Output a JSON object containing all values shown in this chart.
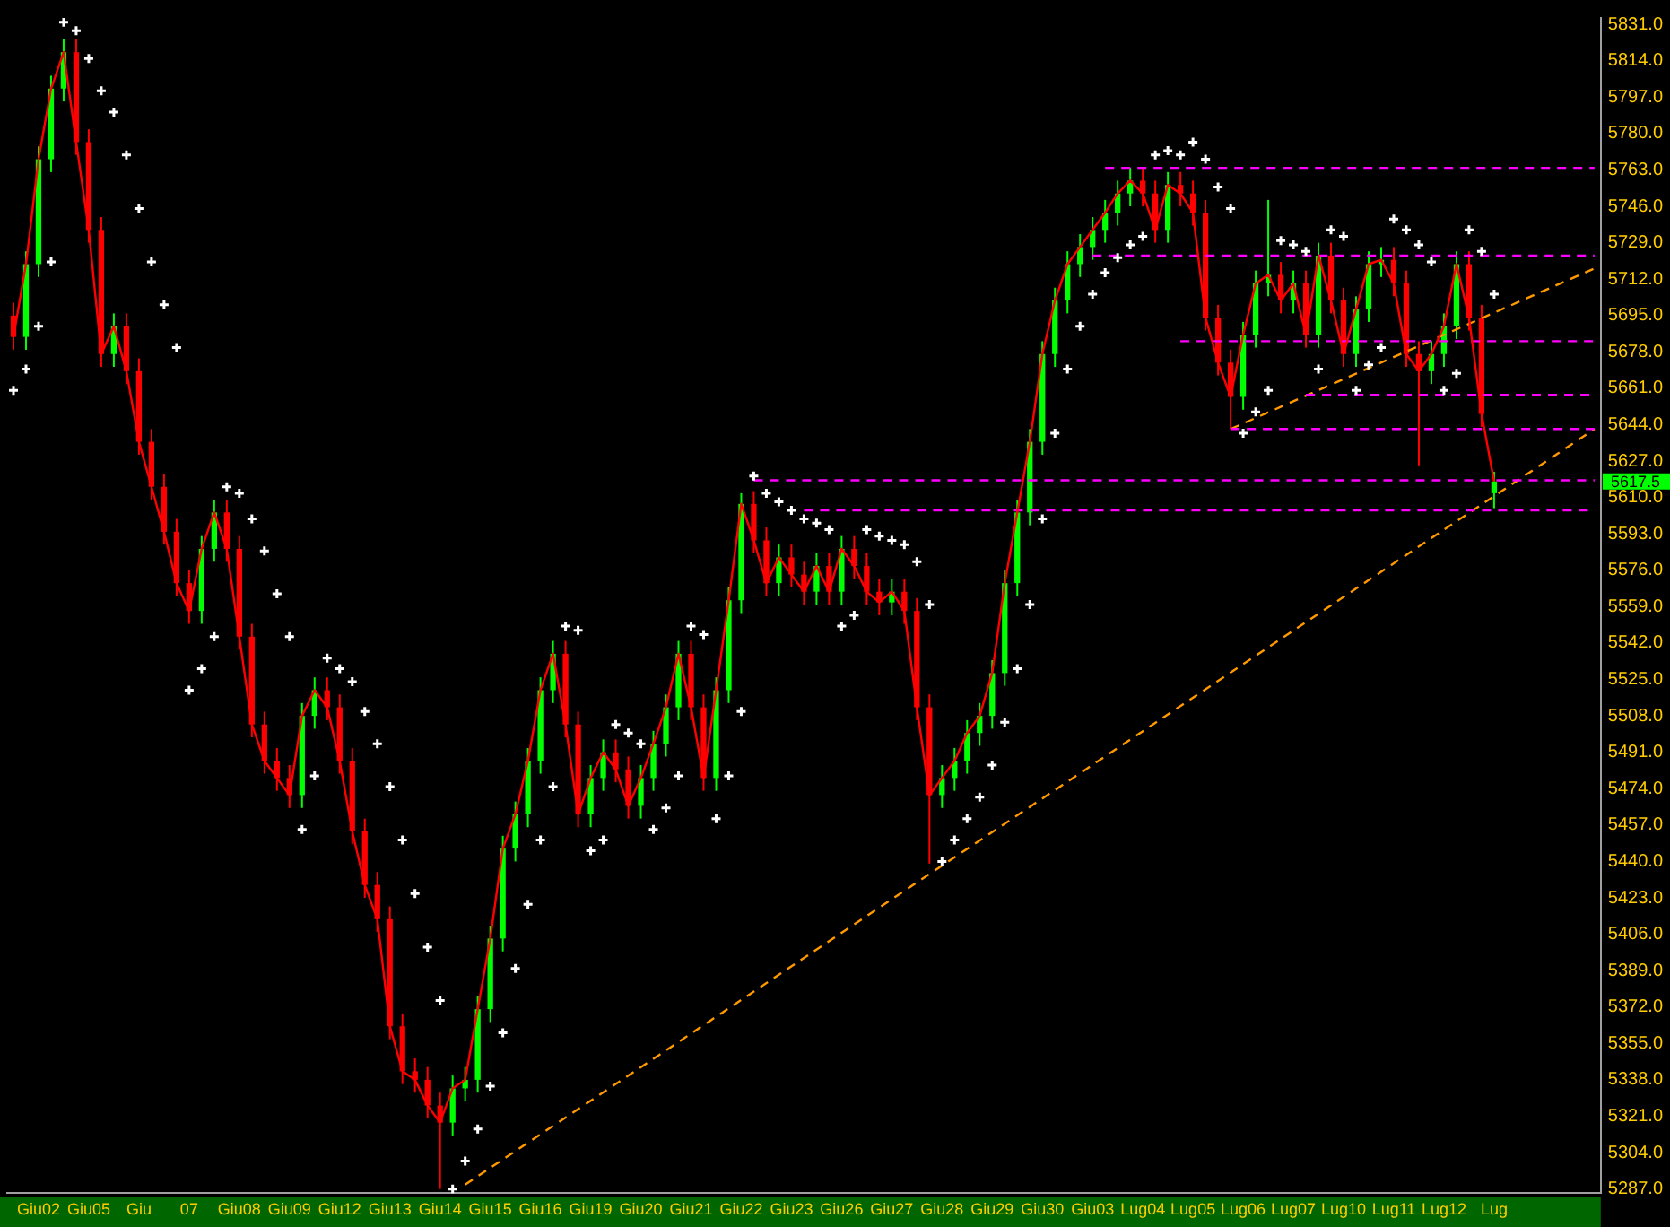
{
  "chart_data": {
    "type": "candlestick",
    "categories": [
      null,
      null,
      "Giu02",
      null,
      null,
      null,
      "Giu05",
      null,
      null,
      null,
      "Giu",
      null,
      null,
      null,
      "07",
      null,
      null,
      null,
      "Giu08",
      null,
      null,
      null,
      "Giu09",
      null,
      null,
      null,
      "Giu12",
      null,
      null,
      null,
      "Giu13",
      null,
      null,
      null,
      "Giu14",
      null,
      null,
      null,
      "Giu15",
      null,
      null,
      null,
      "Giu16",
      null,
      null,
      null,
      "Giu19",
      null,
      null,
      null,
      "Giu20",
      null,
      null,
      null,
      "Giu21",
      null,
      null,
      null,
      "Giu22",
      null,
      null,
      null,
      "Giu23",
      null,
      null,
      null,
      "Giu26",
      null,
      null,
      null,
      "Giu27",
      null,
      null,
      null,
      "Giu28",
      null,
      null,
      null,
      "Giu29",
      null,
      null,
      null,
      "Giu30",
      null,
      null,
      null,
      "Giu03",
      null,
      null,
      null,
      "Lug04",
      null,
      null,
      null,
      "Lug05",
      null,
      null,
      null,
      "Lug06",
      null,
      null,
      null,
      "Lug07",
      null,
      null,
      null,
      "Lug10",
      null,
      null,
      null,
      "Lug11",
      null,
      null,
      null,
      "Lug12",
      null,
      null,
      null,
      "Lug",
      null,
      null,
      null,
      null,
      null,
      null,
      null,
      null
    ],
    "ohlc": [
      [
        5695,
        5701,
        5679,
        5685
      ],
      [
        5685,
        5725,
        5679,
        5719
      ],
      [
        5719,
        5774,
        5713,
        5768
      ],
      [
        5768,
        5807,
        5762,
        5801
      ],
      [
        5801,
        5824,
        5795,
        5818
      ],
      [
        5818,
        5824,
        5770,
        5776
      ],
      [
        5776,
        5782,
        5729,
        5735
      ],
      [
        5735,
        5741,
        5671,
        5677
      ],
      [
        5677,
        5696,
        5671,
        5690
      ],
      [
        5690,
        5696,
        5663,
        5669
      ],
      [
        5669,
        5675,
        5630,
        5636
      ],
      [
        5636,
        5642,
        5609,
        5615
      ],
      [
        5615,
        5621,
        5588,
        5594
      ],
      [
        5594,
        5600,
        5564,
        5570
      ],
      [
        5570,
        5576,
        5551,
        5557
      ],
      [
        5557,
        5592,
        5551,
        5586
      ],
      [
        5586,
        5609,
        5580,
        5603
      ],
      [
        5603,
        5609,
        5580,
        5586
      ],
      [
        5586,
        5592,
        5539,
        5545
      ],
      [
        5545,
        5551,
        5498,
        5504
      ],
      [
        5504,
        5510,
        5481,
        5487
      ],
      [
        5487,
        5493,
        5473,
        5479
      ],
      [
        5479,
        5485,
        5465,
        5471
      ],
      [
        5471,
        5514,
        5465,
        5508
      ],
      [
        5508,
        5526,
        5502,
        5520
      ],
      [
        5520,
        5526,
        5506,
        5512
      ],
      [
        5512,
        5518,
        5481,
        5487
      ],
      [
        5487,
        5493,
        5448,
        5454
      ],
      [
        5454,
        5460,
        5423,
        5429
      ],
      [
        5429,
        5435,
        5407,
        5413
      ],
      [
        5413,
        5419,
        5357,
        5363
      ],
      [
        5363,
        5369,
        5336,
        5342
      ],
      [
        5342,
        5348,
        5332,
        5338
      ],
      [
        5338,
        5344,
        5320,
        5326
      ],
      [
        5326,
        5332,
        5287,
        5318
      ],
      [
        5318,
        5340,
        5312,
        5334
      ],
      [
        5334,
        5344,
        5328,
        5338
      ],
      [
        5338,
        5377,
        5332,
        5371
      ],
      [
        5371,
        5410,
        5365,
        5404
      ],
      [
        5404,
        5452,
        5398,
        5446
      ],
      [
        5446,
        5468,
        5440,
        5462
      ],
      [
        5462,
        5493,
        5456,
        5487
      ],
      [
        5487,
        5526,
        5481,
        5520
      ],
      [
        5520,
        5543,
        5514,
        5537
      ],
      [
        5537,
        5543,
        5498,
        5504
      ],
      [
        5504,
        5510,
        5456,
        5462
      ],
      [
        5462,
        5485,
        5456,
        5479
      ],
      [
        5479,
        5497,
        5473,
        5491
      ],
      [
        5491,
        5497,
        5477,
        5483
      ],
      [
        5483,
        5489,
        5460,
        5466
      ],
      [
        5466,
        5485,
        5460,
        5479
      ],
      [
        5479,
        5501,
        5473,
        5495
      ],
      [
        5495,
        5518,
        5489,
        5512
      ],
      [
        5512,
        5543,
        5506,
        5537
      ],
      [
        5537,
        5543,
        5506,
        5512
      ],
      [
        5512,
        5518,
        5473,
        5479
      ],
      [
        5479,
        5526,
        5473,
        5520
      ],
      [
        5520,
        5568,
        5514,
        5562
      ],
      [
        5562,
        5612,
        5556,
        5607
      ],
      [
        5607,
        5613,
        5584,
        5590
      ],
      [
        5590,
        5596,
        5564,
        5570
      ],
      [
        5570,
        5588,
        5564,
        5582
      ],
      [
        5582,
        5588,
        5568,
        5574
      ],
      [
        5574,
        5580,
        5560,
        5566
      ],
      [
        5566,
        5584,
        5560,
        5578
      ],
      [
        5578,
        5584,
        5560,
        5566
      ],
      [
        5566,
        5592,
        5560,
        5586
      ],
      [
        5586,
        5592,
        5572,
        5578
      ],
      [
        5578,
        5584,
        5560,
        5566
      ],
      [
        5566,
        5572,
        5555,
        5561
      ],
      [
        5561,
        5572,
        5555,
        5566
      ],
      [
        5566,
        5572,
        5551,
        5557
      ],
      [
        5557,
        5563,
        5506,
        5512
      ],
      [
        5512,
        5518,
        5439,
        5471
      ],
      [
        5471,
        5485,
        5465,
        5479
      ],
      [
        5479,
        5493,
        5473,
        5487
      ],
      [
        5487,
        5506,
        5481,
        5500
      ],
      [
        5500,
        5514,
        5494,
        5508
      ],
      [
        5508,
        5534,
        5502,
        5528
      ],
      [
        5528,
        5576,
        5522,
        5570
      ],
      [
        5570,
        5609,
        5564,
        5603
      ],
      [
        5603,
        5642,
        5597,
        5636
      ],
      [
        5636,
        5683,
        5630,
        5677
      ],
      [
        5677,
        5708,
        5671,
        5702
      ],
      [
        5702,
        5725,
        5696,
        5719
      ],
      [
        5719,
        5733,
        5713,
        5727
      ],
      [
        5727,
        5741,
        5721,
        5735
      ],
      [
        5735,
        5749,
        5729,
        5743
      ],
      [
        5743,
        5758,
        5737,
        5752
      ],
      [
        5752,
        5764,
        5746,
        5758
      ],
      [
        5758,
        5764,
        5746,
        5752
      ],
      [
        5752,
        5758,
        5729,
        5735
      ],
      [
        5735,
        5762,
        5729,
        5756
      ],
      [
        5756,
        5762,
        5746,
        5752
      ],
      [
        5752,
        5758,
        5737,
        5743
      ],
      [
        5743,
        5749,
        5688,
        5694
      ],
      [
        5694,
        5700,
        5667,
        5673
      ],
      [
        5673,
        5679,
        5642,
        5657
      ],
      [
        5657,
        5692,
        5651,
        5686
      ],
      [
        5686,
        5716,
        5680,
        5710
      ],
      [
        5710,
        5749,
        5704,
        5714
      ],
      [
        5714,
        5720,
        5696,
        5702
      ],
      [
        5702,
        5716,
        5696,
        5710
      ],
      [
        5710,
        5716,
        5680,
        5686
      ],
      [
        5686,
        5729,
        5680,
        5723
      ],
      [
        5723,
        5729,
        5696,
        5702
      ],
      [
        5702,
        5708,
        5671,
        5677
      ],
      [
        5677,
        5704,
        5671,
        5698
      ],
      [
        5698,
        5725,
        5692,
        5719
      ],
      [
        5719,
        5727,
        5713,
        5721
      ],
      [
        5721,
        5727,
        5704,
        5710
      ],
      [
        5710,
        5716,
        5671,
        5677
      ],
      [
        5677,
        5683,
        5625,
        5669
      ],
      [
        5669,
        5683,
        5663,
        5677
      ],
      [
        5677,
        5696,
        5671,
        5690
      ],
      [
        5690,
        5725,
        5684,
        5719
      ],
      [
        5719,
        5725,
        5688,
        5694
      ],
      [
        5694,
        5700,
        5643,
        5649
      ],
      [
        5612,
        5622,
        5605,
        5617.5
      ],
      null,
      null,
      null,
      null,
      null,
      null,
      null,
      null
    ],
    "colors": [
      "#ff0000",
      "#00ff00",
      "#00ff00",
      "#00ff00",
      "#00ff00",
      "#ff0000",
      "#ff0000",
      "#ff0000",
      "#00ff00",
      "#ff0000",
      "#ff0000",
      "#ff0000",
      "#ff0000",
      "#ff0000",
      "#ff0000",
      "#00ff00",
      "#00ff00",
      "#ff0000",
      "#ff0000",
      "#ff0000",
      "#ff0000",
      "#ff0000",
      "#ff0000",
      "#00ff00",
      "#00ff00",
      "#ff0000",
      "#ff0000",
      "#ff0000",
      "#ff0000",
      "#ff0000",
      "#ff0000",
      "#ff0000",
      "#ff0000",
      "#ff0000",
      "#ff0000",
      "#00ff00",
      "#00ff00",
      "#00ff00",
      "#00ff00",
      "#00ff00",
      "#00ff00",
      "#00ff00",
      "#00ff00",
      "#00ff00",
      "#ff0000",
      "#ff0000",
      "#00ff00",
      "#00ff00",
      "#ff0000",
      "#ff0000",
      "#00ff00",
      "#00ff00",
      "#00ff00",
      "#00ff00",
      "#ff0000",
      "#ff0000",
      "#00ff00",
      "#00ff00",
      "#00ff00",
      "#ff0000",
      "#ff0000",
      "#00ff00",
      "#ff0000",
      "#ff0000",
      "#00ff00",
      "#ff0000",
      "#00ff00",
      "#ff0000",
      "#ff0000",
      "#ff0000",
      "#00ff00",
      "#ff0000",
      "#ff0000",
      "#ff0000",
      "#00ff00",
      "#00ff00",
      "#00ff00",
      "#00ff00",
      "#00ff00",
      "#00ff00",
      "#00ff00",
      "#00ff00",
      "#00ff00",
      "#00ff00",
      "#00ff00",
      "#00ff00",
      "#00ff00",
      "#00ff00",
      "#00ff00",
      "#00ff00",
      "#ff0000",
      "#ff0000",
      "#00ff00",
      "#ff0000",
      "#ff0000",
      "#ff0000",
      "#ff0000",
      "#ff0000",
      "#00ff00",
      "#00ff00",
      "#00ff00",
      "#ff0000",
      "#00ff00",
      "#ff0000",
      "#00ff00",
      "#ff0000",
      "#ff0000",
      "#00ff00",
      "#00ff00",
      "#00ff00",
      "#ff0000",
      "#ff0000",
      "#ff0000",
      "#00ff00",
      "#00ff00",
      "#00ff00",
      "#ff0000",
      "#ff0000",
      "#00ff00",
      null,
      null,
      null,
      null,
      null,
      null,
      null,
      null
    ],
    "series": [
      {
        "type": "line",
        "color": "#ff0000",
        "line_style": "solid",
        "values": [
          5685,
          5719,
          5768,
          5801,
          5818,
          5776,
          5735,
          5677,
          5690,
          5669,
          5636,
          5615,
          5594,
          5570,
          5557,
          5586,
          5603,
          5586,
          5545,
          5504,
          5487,
          5479,
          5471,
          5508,
          5520,
          5512,
          5487,
          5454,
          5429,
          5413,
          5363,
          5342,
          5338,
          5326,
          5318,
          5334,
          5338,
          5371,
          5404,
          5446,
          5462,
          5487,
          5520,
          5537,
          5504,
          5462,
          5479,
          5491,
          5483,
          5466,
          5479,
          5495,
          5512,
          5537,
          5512,
          5479,
          5520,
          5562,
          5607,
          5590,
          5570,
          5582,
          5574,
          5566,
          5578,
          5566,
          5586,
          5578,
          5566,
          5561,
          5566,
          5557,
          5512,
          5471,
          5479,
          5487,
          5500,
          5508,
          5528,
          5570,
          5603,
          5636,
          5677,
          5702,
          5719,
          5727,
          5735,
          5743,
          5752,
          5758,
          5752,
          5735,
          5756,
          5752,
          5743,
          5694,
          5673,
          5657,
          5686,
          5710,
          5714,
          5702,
          5710,
          5686,
          5723,
          5702,
          5677,
          5698,
          5719,
          5721,
          5710,
          5677,
          5669,
          5677,
          5690,
          5719,
          5694,
          5649,
          5617.5,
          null,
          null,
          null,
          null,
          null,
          null,
          null,
          null
        ]
      },
      {
        "type": "scatter",
        "color": "#ffffff",
        "marker": "cross",
        "values": [
          5660,
          5670,
          5690,
          5720,
          5832,
          5828,
          5815,
          5800,
          5790,
          5770,
          5745,
          5720,
          5700,
          5680,
          5520,
          5530,
          5545,
          5615,
          5612,
          5600,
          5585,
          5565,
          5545,
          5455,
          5480,
          5535,
          5530,
          5524,
          5510,
          5495,
          5475,
          5450,
          5425,
          5400,
          5375,
          5287,
          5300,
          5315,
          5335,
          5360,
          5390,
          5420,
          5450,
          5475,
          5550,
          5548,
          5445,
          5450,
          5504,
          5500,
          5495,
          5455,
          5465,
          5480,
          5550,
          5546,
          5460,
          5480,
          5510,
          5620,
          5612,
          5608,
          5604,
          5600,
          5598,
          5595,
          5550,
          5555,
          5595,
          5592,
          5590,
          5588,
          5580,
          5560,
          5440,
          5450,
          5460,
          5470,
          5485,
          5505,
          5530,
          5560,
          5600,
          5640,
          5670,
          5690,
          5705,
          5715,
          5722,
          5728,
          5732,
          5770,
          5772,
          5770,
          5776,
          5768,
          5755,
          5745,
          5640,
          5650,
          5660,
          5730,
          5728,
          5725,
          5670,
          5735,
          5732,
          5660,
          5672,
          5680,
          5740,
          5735,
          5728,
          5720,
          5660,
          5668,
          5735,
          5725,
          5705,
          null,
          null,
          null,
          null,
          null,
          null,
          null,
          null
        ]
      },
      {
        "type": "line",
        "color": "#ff00ff",
        "line_style": "dashed",
        "values": [
          null,
          null,
          null,
          null,
          null,
          null,
          null,
          null,
          null,
          null,
          null,
          null,
          null,
          null,
          null,
          null,
          null,
          null,
          null,
          null,
          null,
          null,
          null,
          null,
          null,
          null,
          null,
          null,
          null,
          null,
          null,
          null,
          null,
          null,
          null,
          null,
          null,
          null,
          null,
          null,
          null,
          null,
          null,
          null,
          null,
          null,
          null,
          null,
          null,
          null,
          null,
          null,
          null,
          null,
          null,
          null,
          null,
          null,
          null,
          null,
          null,
          null,
          null,
          null,
          null,
          null,
          null,
          null,
          null,
          null,
          null,
          null,
          null,
          null,
          null,
          null,
          null,
          null,
          null,
          null,
          null,
          null,
          null,
          null,
          null,
          null,
          null,
          5764,
          5764,
          5764,
          5764,
          5764,
          5764,
          5764,
          5764,
          5764,
          5764,
          5764,
          5764,
          5764,
          5764,
          5764,
          5764,
          5764,
          5764,
          5764,
          5764,
          5764,
          5764,
          5764,
          5764,
          5764,
          5764,
          5764,
          5764,
          5764,
          5764,
          5764,
          5764,
          5764,
          5764,
          5764,
          5764,
          5764,
          5764,
          5764,
          5764
        ]
      },
      {
        "type": "line",
        "color": "#ff00ff",
        "line_style": "dashed",
        "values": [
          null,
          null,
          null,
          null,
          null,
          null,
          null,
          null,
          null,
          null,
          null,
          null,
          null,
          null,
          null,
          null,
          null,
          null,
          null,
          null,
          null,
          null,
          null,
          null,
          null,
          null,
          null,
          null,
          null,
          null,
          null,
          null,
          null,
          null,
          null,
          null,
          null,
          null,
          null,
          null,
          null,
          null,
          null,
          null,
          null,
          null,
          null,
          null,
          null,
          null,
          null,
          null,
          null,
          null,
          null,
          null,
          null,
          null,
          null,
          null,
          null,
          null,
          null,
          null,
          null,
          null,
          null,
          null,
          null,
          null,
          null,
          null,
          null,
          null,
          null,
          null,
          null,
          null,
          null,
          null,
          null,
          null,
          null,
          null,
          null,
          null,
          5723,
          5723,
          5723,
          5723,
          5723,
          5723,
          5723,
          5723,
          5723,
          5723,
          5723,
          5723,
          5723,
          5723,
          5723,
          5723,
          5723,
          5723,
          5723,
          5723,
          5723,
          5723,
          5723,
          5723,
          5723,
          5723,
          5723,
          5723,
          5723,
          5723,
          5723,
          5723,
          5723,
          5723,
          5723,
          5723,
          5723,
          5723,
          5723,
          5723,
          5723
        ]
      },
      {
        "type": "line",
        "color": "#ff00ff",
        "line_style": "dashed",
        "values": [
          null,
          null,
          null,
          null,
          null,
          null,
          null,
          null,
          null,
          null,
          null,
          null,
          null,
          null,
          null,
          null,
          null,
          null,
          null,
          null,
          null,
          null,
          null,
          null,
          null,
          null,
          null,
          null,
          null,
          null,
          null,
          null,
          null,
          null,
          null,
          null,
          null,
          null,
          null,
          null,
          null,
          null,
          null,
          null,
          null,
          null,
          null,
          null,
          null,
          null,
          null,
          null,
          null,
          null,
          null,
          null,
          null,
          null,
          null,
          null,
          null,
          null,
          null,
          null,
          null,
          null,
          null,
          null,
          null,
          null,
          null,
          null,
          null,
          null,
          null,
          null,
          null,
          null,
          null,
          null,
          null,
          null,
          null,
          null,
          null,
          null,
          null,
          null,
          null,
          null,
          null,
          null,
          null,
          5683,
          5683,
          5683,
          5683,
          5683,
          5683,
          5683,
          5683,
          5683,
          5683,
          5683,
          5683,
          5683,
          5683,
          5683,
          5683,
          5683,
          5683,
          5683,
          5683,
          5683,
          5683,
          5683,
          5683,
          5683,
          5683,
          5683,
          5683,
          5683,
          5683,
          5683,
          5683,
          5683,
          5683
        ]
      },
      {
        "type": "line",
        "color": "#ff00ff",
        "line_style": "dashed",
        "values": [
          null,
          null,
          null,
          null,
          null,
          null,
          null,
          null,
          null,
          null,
          null,
          null,
          null,
          null,
          null,
          null,
          null,
          null,
          null,
          null,
          null,
          null,
          null,
          null,
          null,
          null,
          null,
          null,
          null,
          null,
          null,
          null,
          null,
          null,
          null,
          null,
          null,
          null,
          null,
          null,
          null,
          null,
          null,
          null,
          null,
          null,
          null,
          null,
          null,
          null,
          null,
          null,
          null,
          null,
          null,
          null,
          null,
          null,
          null,
          null,
          null,
          null,
          null,
          null,
          null,
          null,
          null,
          null,
          null,
          null,
          null,
          null,
          null,
          null,
          null,
          null,
          null,
          null,
          null,
          null,
          null,
          null,
          null,
          null,
          null,
          null,
          null,
          null,
          null,
          null,
          null,
          null,
          null,
          null,
          null,
          null,
          null,
          null,
          null,
          null,
          null,
          null,
          null,
          5658,
          5658,
          5658,
          5658,
          5658,
          5658,
          5658,
          5658,
          5658,
          5658,
          5658,
          5658,
          5658,
          5658,
          5658,
          5658,
          5658,
          5658,
          5658,
          5658,
          5658,
          5658,
          5658,
          5658
        ]
      },
      {
        "type": "line",
        "color": "#ff00ff",
        "line_style": "dashed",
        "values": [
          null,
          null,
          null,
          null,
          null,
          null,
          null,
          null,
          null,
          null,
          null,
          null,
          null,
          null,
          null,
          null,
          null,
          null,
          null,
          null,
          null,
          null,
          null,
          null,
          null,
          null,
          null,
          null,
          null,
          null,
          null,
          null,
          null,
          null,
          null,
          null,
          null,
          null,
          null,
          null,
          null,
          null,
          null,
          null,
          null,
          null,
          null,
          null,
          null,
          null,
          null,
          null,
          null,
          null,
          null,
          null,
          null,
          null,
          null,
          null,
          null,
          null,
          null,
          null,
          null,
          null,
          null,
          null,
          null,
          null,
          null,
          null,
          null,
          null,
          null,
          null,
          null,
          null,
          null,
          null,
          null,
          null,
          null,
          null,
          null,
          null,
          null,
          null,
          null,
          null,
          null,
          null,
          null,
          null,
          null,
          null,
          null,
          5642,
          5642,
          5642,
          5642,
          5642,
          5642,
          5642,
          5642,
          5642,
          5642,
          5642,
          5642,
          5642,
          5642,
          5642,
          5642,
          5642,
          5642,
          5642,
          5642,
          5642,
          5642,
          5642,
          5642,
          5642,
          5642,
          5642,
          5642,
          5642,
          5642
        ]
      },
      {
        "type": "line",
        "color": "#ff00ff",
        "line_style": "dashed",
        "values": [
          null,
          null,
          null,
          null,
          null,
          null,
          null,
          null,
          null,
          null,
          null,
          null,
          null,
          null,
          null,
          null,
          null,
          null,
          null,
          null,
          null,
          null,
          null,
          null,
          null,
          null,
          null,
          null,
          null,
          null,
          null,
          null,
          null,
          null,
          null,
          null,
          null,
          null,
          null,
          null,
          null,
          null,
          null,
          null,
          null,
          null,
          null,
          null,
          null,
          null,
          null,
          null,
          null,
          null,
          null,
          null,
          null,
          null,
          null,
          5618,
          5618,
          5618,
          5618,
          5618,
          5618,
          5618,
          5618,
          5618,
          5618,
          5618,
          5618,
          5618,
          5618,
          5618,
          5618,
          5618,
          5618,
          5618,
          5618,
          5618,
          5618,
          5618,
          5618,
          5618,
          5618,
          5618,
          5618,
          5618,
          5618,
          5618,
          5618,
          5618,
          5618,
          5618,
          5618,
          5618,
          5618,
          5618,
          5618,
          5618,
          5618,
          5618,
          5618,
          5618,
          5618,
          5618,
          5618,
          5618,
          5618,
          5618,
          5618,
          5618,
          5618,
          5618,
          5618,
          5618,
          5618,
          5618,
          5618,
          5618,
          5618,
          5618,
          5618,
          5618,
          5618,
          5618,
          5618
        ]
      },
      {
        "type": "line",
        "color": "#ff00ff",
        "line_style": "dashed",
        "values": [
          null,
          null,
          null,
          null,
          null,
          null,
          null,
          null,
          null,
          null,
          null,
          null,
          null,
          null,
          null,
          null,
          null,
          null,
          null,
          null,
          null,
          null,
          null,
          null,
          null,
          null,
          null,
          null,
          null,
          null,
          null,
          null,
          null,
          null,
          null,
          null,
          null,
          null,
          null,
          null,
          null,
          null,
          null,
          null,
          null,
          null,
          null,
          null,
          null,
          null,
          null,
          null,
          null,
          null,
          null,
          null,
          null,
          null,
          null,
          null,
          null,
          null,
          null,
          5604,
          5604,
          5604,
          5604,
          5604,
          5604,
          5604,
          5604,
          5604,
          5604,
          5604,
          5604,
          5604,
          5604,
          5604,
          5604,
          5604,
          5604,
          5604,
          5604,
          5604,
          5604,
          5604,
          5604,
          5604,
          5604,
          5604,
          5604,
          5604,
          5604,
          5604,
          5604,
          5604,
          5604,
          5604,
          5604,
          5604,
          5604,
          5604,
          5604,
          5604,
          5604,
          5604,
          5604,
          5604,
          5604,
          5604,
          5604,
          5604,
          5604,
          5604,
          5604,
          5604,
          5604,
          5604,
          5604,
          5604,
          5604,
          5604,
          5604,
          5604,
          5604,
          5604,
          5604
        ]
      },
      {
        "type": "line",
        "color": "#ff9900",
        "line_style": "dashed",
        "values": [
          null,
          null,
          null,
          null,
          null,
          null,
          null,
          null,
          null,
          null,
          null,
          null,
          null,
          null,
          null,
          null,
          null,
          null,
          null,
          null,
          null,
          null,
          null,
          null,
          null,
          null,
          null,
          null,
          null,
          null,
          null,
          null,
          null,
          null,
          null,
          null,
          5289,
          null,
          null,
          null,
          null,
          null,
          null,
          null,
          null,
          null,
          null,
          null,
          null,
          null,
          null,
          null,
          null,
          null,
          null,
          null,
          null,
          null,
          null,
          null,
          null,
          null,
          null,
          null,
          null,
          null,
          null,
          null,
          null,
          null,
          null,
          null,
          null,
          null,
          null,
          null,
          null,
          null,
          null,
          null,
          null,
          null,
          null,
          null,
          null,
          null,
          null,
          null,
          null,
          null,
          null,
          null,
          null,
          null,
          null,
          null,
          null,
          null,
          null,
          null,
          null,
          null,
          null,
          null,
          null,
          null,
          null,
          null,
          null,
          null,
          null,
          null,
          null,
          null,
          null,
          null,
          null,
          null,
          null,
          null,
          null,
          null,
          null,
          null,
          null,
          null,
          5642
        ]
      },
      {
        "type": "line",
        "color": "#ff9900",
        "line_style": "dashed",
        "values": [
          null,
          null,
          null,
          null,
          null,
          null,
          null,
          null,
          null,
          null,
          null,
          null,
          null,
          null,
          null,
          null,
          null,
          null,
          null,
          null,
          null,
          null,
          null,
          null,
          null,
          null,
          null,
          null,
          null,
          null,
          null,
          null,
          null,
          null,
          null,
          null,
          null,
          null,
          null,
          null,
          null,
          null,
          null,
          null,
          null,
          null,
          null,
          null,
          null,
          null,
          null,
          null,
          null,
          null,
          null,
          null,
          null,
          null,
          null,
          null,
          null,
          null,
          null,
          null,
          null,
          null,
          null,
          null,
          null,
          null,
          null,
          null,
          null,
          null,
          null,
          null,
          null,
          null,
          null,
          null,
          null,
          null,
          null,
          null,
          null,
          null,
          null,
          null,
          null,
          null,
          null,
          null,
          null,
          null,
          null,
          null,
          null,
          5642,
          null,
          null,
          null,
          null,
          null,
          null,
          null,
          null,
          null,
          null,
          null,
          null,
          null,
          null,
          null,
          null,
          null,
          null,
          null,
          null,
          null,
          null,
          null,
          null,
          null,
          null,
          null,
          null,
          5717
        ]
      }
    ],
    "ylim": [
      5285,
      5834
    ],
    "yticks": [
      {
        "value": 5287,
        "label": "5287.0"
      },
      {
        "value": 5304,
        "label": "5304.0"
      },
      {
        "value": 5321,
        "label": "5321.0"
      },
      {
        "value": 5338,
        "label": "5338.0"
      },
      {
        "value": 5355,
        "label": "5355.0"
      },
      {
        "value": 5372,
        "label": "5372.0"
      },
      {
        "value": 5389,
        "label": "5389.0"
      },
      {
        "value": 5406,
        "label": "5406.0"
      },
      {
        "value": 5423,
        "label": "5423.0"
      },
      {
        "value": 5440,
        "label": "5440.0"
      },
      {
        "value": 5457,
        "label": "5457.0"
      },
      {
        "value": 5474,
        "label": "5474.0"
      },
      {
        "value": 5491,
        "label": "5491.0"
      },
      {
        "value": 5508,
        "label": "5508.0"
      },
      {
        "value": 5525,
        "label": "5525.0"
      },
      {
        "value": 5542,
        "label": "5542.0"
      },
      {
        "value": 5559,
        "label": "5559.0"
      },
      {
        "value": 5576,
        "label": "5576.0"
      },
      {
        "value": 5593,
        "label": "5593.0"
      },
      {
        "value": 5610,
        "label": "5610.0"
      },
      {
        "value": 5627,
        "label": "5627.0"
      },
      {
        "value": 5644,
        "label": "5644.0"
      },
      {
        "value": 5661,
        "label": "5661.0"
      },
      {
        "value": 5678,
        "label": "5678.0"
      },
      {
        "value": 5695,
        "label": "5695.0"
      },
      {
        "value": 5712,
        "label": "5712.0"
      },
      {
        "value": 5729,
        "label": "5729.0"
      },
      {
        "value": 5746,
        "label": "5746.0"
      },
      {
        "value": 5763,
        "label": "5763.0"
      },
      {
        "value": 5780,
        "label": "5780.0"
      },
      {
        "value": 5797,
        "label": "5797.0"
      },
      {
        "value": 5814,
        "label": "5814.0"
      },
      {
        "value": 5831,
        "label": "5831.0"
      }
    ],
    "annotations": [
      "5617.5"
    ],
    "grid": false,
    "legend": false
  }
}
